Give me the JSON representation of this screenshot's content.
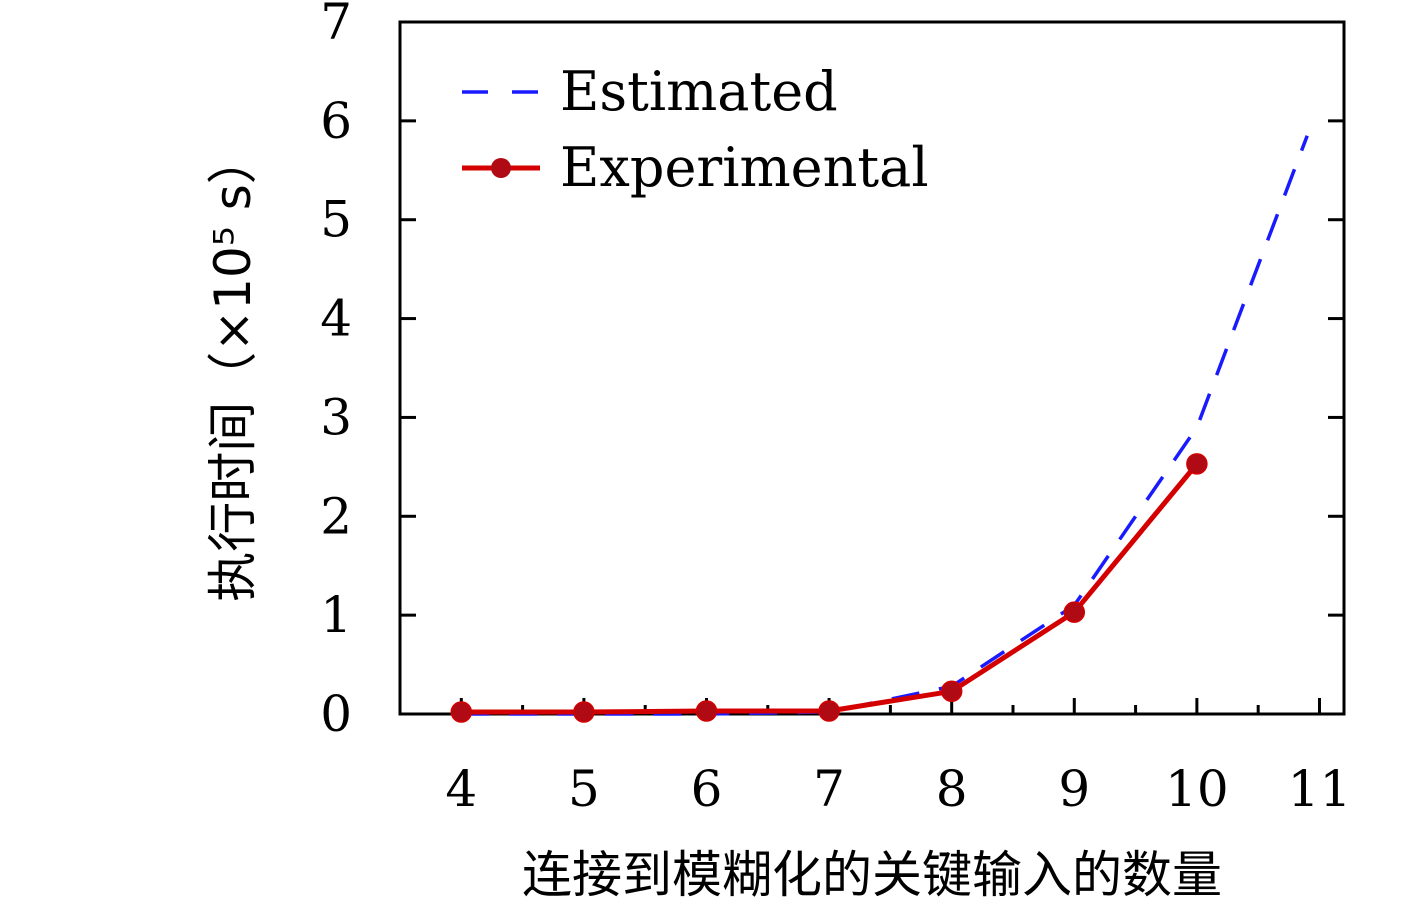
{
  "chart_data": {
    "type": "line",
    "xlabel": "连接到模糊化的关键输入的数量",
    "ylabel": "执行时间（×10⁵ s）",
    "xlim": [
      3.5,
      11.2
    ],
    "ylim": [
      0,
      7
    ],
    "xticks": [
      4,
      5,
      6,
      7,
      8,
      9,
      10,
      11
    ],
    "yticks": [
      0,
      1,
      2,
      3,
      4,
      5,
      6,
      7
    ],
    "grid": false,
    "legend": "top-left",
    "series": [
      {
        "name": "Estimated",
        "style": "dashed",
        "color": "#1a1aff",
        "x": [
          4,
          5,
          6,
          7,
          8,
          9,
          10,
          10.9
        ],
        "y": [
          0.0,
          0.0,
          0.0,
          0.02,
          0.28,
          1.1,
          2.9,
          5.85
        ]
      },
      {
        "name": "Experimental",
        "style": "solid-marker",
        "color": "#d40000",
        "marker_color": "#b00a14",
        "x": [
          4,
          5,
          6,
          7,
          8,
          9,
          10
        ],
        "y": [
          0.02,
          0.02,
          0.03,
          0.03,
          0.23,
          1.03,
          2.53
        ]
      }
    ]
  }
}
